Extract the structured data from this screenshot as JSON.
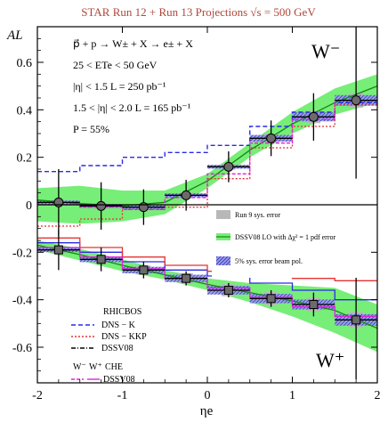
{
  "chart_data": {
    "type": "scatter",
    "title": "STAR Run 12 + Run 13 Projections √s = 500 GeV",
    "xlabel": "ηe",
    "ylabel": "AL",
    "xlim": [
      -2,
      2
    ],
    "ylim": [
      -0.75,
      0.75
    ],
    "xticks": [
      "-2",
      "-1",
      "0",
      "1",
      "2"
    ],
    "yticks": [
      "-0.6",
      "-0.4",
      "-0.2",
      "0",
      "0.2",
      "0.4",
      "0.6"
    ],
    "annotations": [
      "p⃗ + p → W± + X → e± + X",
      "25 < ETe < 50 GeV",
      "|η| < 1.5  L = 250 pb⁻¹",
      "1.5 < |η| < 2.0  L = 165 pb⁻¹",
      "P = 55%"
    ],
    "panel_labels": [
      "W⁻",
      "W⁺"
    ],
    "legend_top": [
      "Run 9 sys. error",
      "DSSV08 LO with Δχ² = 1 pdf error",
      "5% sys. error beam pol."
    ],
    "legend_bottom": {
      "group1": "RHICBOS",
      "group1_items": [
        "DNS − K",
        "DNS − KKP",
        "DSSV08"
      ],
      "group2_headers": [
        "W⁻",
        "W⁺",
        "CHE"
      ],
      "group2_items": [
        "DSSV08"
      ]
    },
    "colors": {
      "band": "#77ee77",
      "dssv_line": "#118811",
      "rhicbos_dns_k": "#2a2ae6",
      "rhicbos_dns_kkp": "#e63232",
      "che": "#dd22dd",
      "points": "#6b6b6b",
      "syserr": "#b8b8b8",
      "beam_pol": "#4b4bd6",
      "title": "#b0463a"
    },
    "wminus": {
      "x": [
        -1.75,
        -1.25,
        -0.75,
        -0.25,
        0.25,
        0.75,
        1.25,
        1.75
      ],
      "y": [
        0.01,
        -0.005,
        -0.01,
        0.04,
        0.16,
        0.28,
        0.37,
        0.44
      ],
      "yerr": [
        0.14,
        0.1,
        0.075,
        0.065,
        0.065,
        0.075,
        0.1,
        0.33
      ]
    },
    "wplus": {
      "x": [
        -1.75,
        -1.25,
        -0.75,
        -0.25,
        0.25,
        0.75,
        1.25,
        1.75
      ],
      "y": [
        -0.19,
        -0.23,
        -0.275,
        -0.31,
        -0.36,
        -0.395,
        -0.42,
        -0.485
      ],
      "yerr": [
        0.085,
        0.05,
        0.035,
        0.03,
        0.03,
        0.035,
        0.05,
        0.25
      ]
    },
    "curves": {
      "wminus_dssv": {
        "x": [
          -2,
          -1.5,
          -1,
          -0.5,
          0,
          0.5,
          1,
          1.5,
          2
        ],
        "y": [
          0.02,
          0.005,
          -0.005,
          0.01,
          0.1,
          0.23,
          0.34,
          0.43,
          0.5
        ]
      },
      "wminus_dns_k": {
        "x": [
          -2,
          -1.75,
          -1.5,
          -1,
          -0.5,
          0,
          0.5,
          0.75,
          1,
          1.5,
          2
        ],
        "y": [
          0.14,
          0.14,
          0.165,
          0.2,
          0.22,
          0.25,
          0.33,
          0.33,
          0.39,
          0.43,
          0.55
        ]
      },
      "wminus_dns_kkp": {
        "x": [
          -2,
          -1.75,
          -1.5,
          -1,
          -0.5,
          0,
          0.5,
          1,
          1.5,
          2
        ],
        "y": [
          -0.09,
          -0.09,
          -0.06,
          -0.02,
          -0.01,
          0.11,
          0.24,
          0.33,
          0.42,
          0.53
        ]
      },
      "wminus_che": {
        "x": [
          -2,
          -1.5,
          -1,
          -0.5,
          0,
          0.5,
          1,
          1.5,
          2
        ],
        "y": [
          0.0,
          -0.01,
          -0.02,
          0.03,
          0.13,
          0.26,
          0.36,
          0.44,
          0.52
        ]
      },
      "wplus_dssv": {
        "x": [
          -2,
          -1.5,
          -1,
          -0.5,
          0,
          0.5,
          1,
          1.5,
          2
        ],
        "y": [
          -0.17,
          -0.21,
          -0.255,
          -0.295,
          -0.335,
          -0.37,
          -0.405,
          -0.445,
          -0.52
        ]
      },
      "wplus_dns_k": {
        "x": [
          -2,
          -1.5,
          -1,
          -0.5,
          0,
          0.5,
          1,
          1.5,
          2
        ],
        "y": [
          -0.16,
          -0.2,
          -0.24,
          -0.275,
          -0.3,
          -0.33,
          -0.36,
          -0.4,
          -0.42
        ]
      },
      "wplus_dns_kkp": {
        "x": [
          -2,
          -1.5,
          -1,
          -0.5,
          0,
          0.5,
          1,
          1.5,
          2
        ],
        "y": [
          -0.14,
          -0.18,
          -0.22,
          -0.255,
          -0.28,
          -0.3,
          -0.31,
          -0.32,
          -0.32
        ]
      },
      "wplus_che": {
        "x": [
          -2,
          -1.5,
          -1,
          -0.5,
          0,
          0.5,
          1,
          1.5,
          2
        ],
        "y": [
          -0.18,
          -0.22,
          -0.27,
          -0.31,
          -0.35,
          -0.39,
          -0.43,
          -0.47,
          -0.51
        ]
      }
    },
    "pdf_band": {
      "wminus": {
        "x": [
          -2,
          -1.5,
          -1,
          -0.5,
          0,
          0.5,
          1,
          1.5,
          2
        ],
        "lo": [
          -0.07,
          -0.08,
          -0.07,
          -0.04,
          0.07,
          0.2,
          0.3,
          0.38,
          0.43
        ],
        "hi": [
          0.07,
          0.08,
          0.06,
          0.06,
          0.13,
          0.26,
          0.39,
          0.49,
          0.55
        ]
      },
      "wplus": {
        "x": [
          -2,
          -1.5,
          -1,
          -0.5,
          0,
          0.5,
          1,
          1.5,
          2
        ],
        "lo": [
          -0.19,
          -0.235,
          -0.28,
          -0.315,
          -0.36,
          -0.41,
          -0.47,
          -0.54,
          -0.62
        ]
      }
    }
  }
}
